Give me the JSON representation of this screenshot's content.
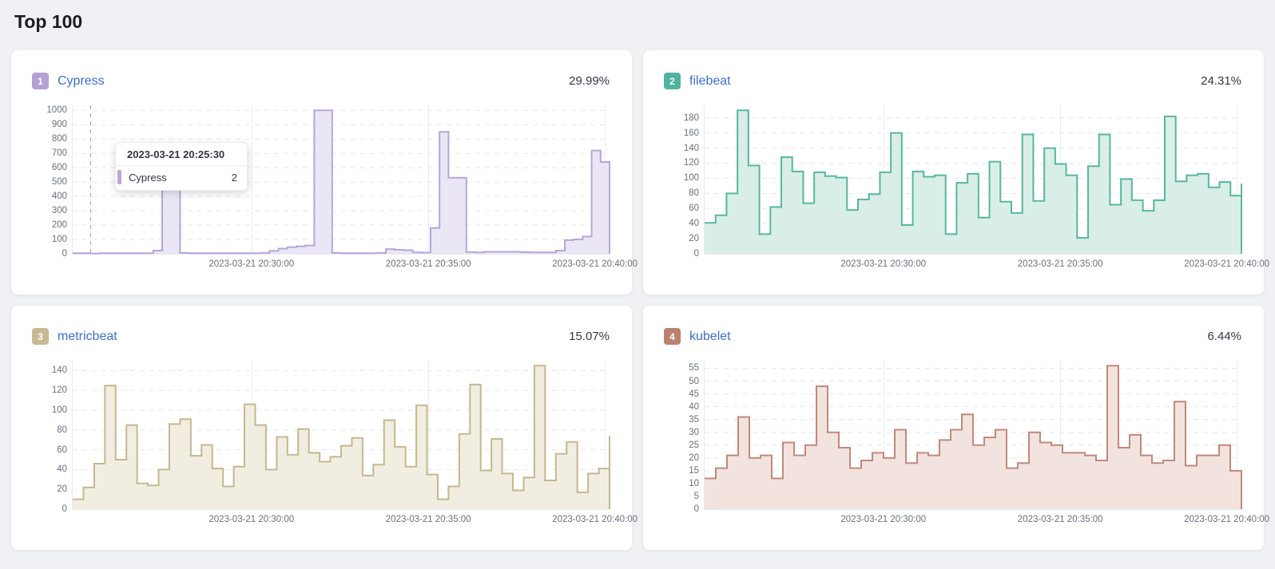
{
  "page": {
    "title": "Top 100"
  },
  "link_color": "#3e6ec7",
  "tooltip": {
    "title": "2023-03-21 20:25:30",
    "series": "Cypress",
    "value": "2",
    "point_index": 2
  },
  "chart_data": [
    {
      "type": "area",
      "rank": "1",
      "name": "Cypress",
      "percent": "29.99%",
      "colors": {
        "stroke": "#b7a6d8",
        "fill": "#ebe6f5",
        "badge": "#b3a0d4"
      },
      "xticks": [
        "2023-03-21 20:30:00",
        "2023-03-21 20:35:00",
        "2023-03-21 20:40:00"
      ],
      "yticks": [
        0,
        100,
        200,
        300,
        400,
        500,
        600,
        700,
        800,
        900,
        1000
      ],
      "ylim": [
        0,
        1000
      ],
      "grid": true,
      "legend": "none",
      "values": [
        4,
        4,
        2,
        4,
        4,
        4,
        4,
        4,
        4,
        22,
        500,
        510,
        6,
        4,
        4,
        4,
        4,
        4,
        4,
        4,
        4,
        6,
        20,
        36,
        46,
        52,
        58,
        1000,
        1000,
        6,
        4,
        4,
        4,
        4,
        6,
        33,
        28,
        25,
        10,
        8,
        180,
        850,
        530,
        530,
        12,
        10,
        14,
        14,
        14,
        14,
        12,
        10,
        10,
        10,
        22,
        95,
        100,
        120,
        720,
        640,
        640
      ]
    },
    {
      "type": "area",
      "rank": "2",
      "name": "filebeat",
      "percent": "24.31%",
      "colors": {
        "stroke": "#58b79e",
        "fill": "#d9eee7",
        "badge": "#50b3a0"
      },
      "xticks": [
        "2023-03-21 20:30:00",
        "2023-03-21 20:35:00",
        "2023-03-21 20:40:00"
      ],
      "yticks": [
        0,
        20,
        40,
        60,
        80,
        100,
        120,
        140,
        160,
        180
      ],
      "ylim": [
        0,
        180
      ],
      "grid": true,
      "legend": "none",
      "values": [
        41,
        51,
        80,
        190,
        117,
        26,
        62,
        128,
        109,
        67,
        108,
        103,
        101,
        58,
        72,
        79,
        108,
        160,
        38,
        109,
        102,
        104,
        26,
        94,
        106,
        48,
        122,
        69,
        54,
        158,
        70,
        140,
        119,
        104,
        21,
        116,
        158,
        65,
        99,
        71,
        57,
        71,
        182,
        96,
        104,
        106,
        88,
        95,
        77,
        93
      ]
    },
    {
      "type": "area",
      "rank": "3",
      "name": "metricbeat",
      "percent": "15.07%",
      "colors": {
        "stroke": "#c4b88f",
        "fill": "#f1eee1",
        "badge": "#c6ba92"
      },
      "xticks": [
        "2023-03-21 20:30:00",
        "2023-03-21 20:35:00",
        "2023-03-21 20:40:00"
      ],
      "yticks": [
        0,
        20,
        40,
        60,
        80,
        100,
        120,
        140
      ],
      "ylim": [
        0,
        140
      ],
      "grid": true,
      "legend": "none",
      "values": [
        10,
        22,
        46,
        125,
        50,
        85,
        26,
        24,
        40,
        86,
        91,
        54,
        65,
        41,
        23,
        43,
        106,
        85,
        40,
        73,
        55,
        81,
        57,
        48,
        53,
        64,
        72,
        34,
        45,
        90,
        63,
        43,
        105,
        35,
        10,
        23,
        76,
        126,
        39,
        71,
        36,
        19,
        32,
        145,
        29,
        56,
        68,
        17,
        36,
        41,
        74
      ]
    },
    {
      "type": "area",
      "rank": "4",
      "name": "kubelet",
      "percent": "6.44%",
      "colors": {
        "stroke": "#c08a7c",
        "fill": "#f2e3de",
        "badge": "#ba8173"
      },
      "xticks": [
        "2023-03-21 20:30:00",
        "2023-03-21 20:35:00",
        "2023-03-21 20:40:00"
      ],
      "yticks": [
        0,
        5,
        10,
        15,
        20,
        25,
        30,
        35,
        40,
        45,
        50,
        55
      ],
      "ylim": [
        0,
        55
      ],
      "grid": true,
      "legend": "none",
      "values": [
        12,
        16,
        21,
        36,
        20,
        21,
        12,
        26,
        21,
        25,
        48,
        30,
        24,
        16,
        19,
        22,
        20,
        31,
        18,
        22,
        21,
        27,
        31,
        37,
        25,
        28,
        31,
        16,
        18,
        30,
        26,
        25,
        22,
        22,
        21,
        19,
        56,
        24,
        29,
        21,
        18,
        19,
        42,
        17,
        21,
        21,
        25,
        15,
        13
      ]
    }
  ]
}
